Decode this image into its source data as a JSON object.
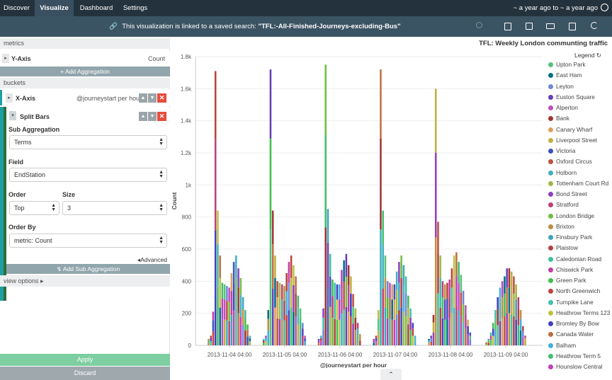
{
  "nav": {
    "tabs": [
      "Discover",
      "Visualize",
      "Dashboard",
      "Settings"
    ],
    "active_tab": "Visualize",
    "time_range": "~ a year ago to ~ a year ago"
  },
  "subbar": {
    "message_prefix": "This visualization is linked to a saved search:",
    "saved_search": "\"TFL:-All-Finished-Journeys-excluding-Bus\""
  },
  "left": {
    "metrics_header": "metrics",
    "y_axis_label": "Y-Axis",
    "y_axis_value": "Count",
    "add_aggregation": "+ Add Aggregation",
    "buckets_header": "buckets",
    "x_axis_label": "X-Axis",
    "x_axis_value": "@journeystart per hour",
    "split_bars_label": "Split Bars",
    "sub_aggregation_label": "Sub Aggregation",
    "sub_aggregation_value": "Terms",
    "field_label": "Field",
    "field_value": "EndStation",
    "order_label": "Order",
    "order_value": "Top",
    "size_label": "Size",
    "size_value": "3",
    "order_by_label": "Order By",
    "order_by_value": "metric: Count",
    "advanced_link": "Advanced",
    "add_sub_aggregation": "Add Sub Aggregation",
    "view_options": "view options",
    "apply": "Apply",
    "discard": "Discard"
  },
  "chart_data": {
    "type": "bar",
    "title": "TFL: Weekly London communting traffic",
    "xlabel": "@journeystart per hour",
    "ylabel": "Count",
    "ylim": [
      0,
      1800
    ],
    "y_ticks": [
      0,
      200,
      400,
      600,
      800,
      1000,
      1200,
      1400,
      1600,
      1800
    ],
    "y_tick_labels": [
      "0",
      "200",
      "400",
      "600",
      "800",
      "1k",
      "1.2k",
      "1.4k",
      "1.6k",
      "1.8k"
    ],
    "x_tick_labels": [
      "2013-11-04 04:00",
      "2013-11-05 04:00",
      "2013-11-06 04:00",
      "2013-11-07 04:00",
      "2013-11-08 04:00",
      "2013-11-09 04:00"
    ],
    "legend_title": "Legend",
    "legend_placement": "right",
    "grid": true,
    "series": [
      {
        "name": "Upton Park",
        "color": "#57c17b"
      },
      {
        "name": "East Ham",
        "color": "#006e8a"
      },
      {
        "name": "Leyton",
        "color": "#6f87d8"
      },
      {
        "name": "Euston Square",
        "color": "#663db8"
      },
      {
        "name": "Alperton",
        "color": "#bc52bc"
      },
      {
        "name": "Bank",
        "color": "#9e3533"
      },
      {
        "name": "Canary Wharf",
        "color": "#daa05d"
      },
      {
        "name": "Liverpool Street",
        "color": "#bfaf40"
      },
      {
        "name": "Victoria",
        "color": "#4050bf"
      },
      {
        "name": "Oxford Circus",
        "color": "#bf5040"
      },
      {
        "name": "Holborn",
        "color": "#40afbf"
      },
      {
        "name": "Tottenham Court Rd",
        "color": "#a0b846"
      },
      {
        "name": "Bond Street",
        "color": "#8e40bf"
      },
      {
        "name": "Stratford",
        "color": "#bf4073"
      },
      {
        "name": "London Bridge",
        "color": "#6fbf40"
      },
      {
        "name": "Brixton",
        "color": "#bf8e40"
      },
      {
        "name": "Finsbury Park",
        "color": "#40a2bf"
      },
      {
        "name": "Plaistow",
        "color": "#b74040"
      },
      {
        "name": "Caledonian Road",
        "color": "#40bf9e"
      },
      {
        "name": "Chiswick Park",
        "color": "#bf40a2"
      },
      {
        "name": "Green Park",
        "color": "#40bf4e"
      },
      {
        "name": "North Greenwich",
        "color": "#bf4040"
      },
      {
        "name": "Turnpike Lane",
        "color": "#40bfaf"
      },
      {
        "name": "Heathrow Terms 123",
        "color": "#bfbf40"
      },
      {
        "name": "Bromley By Bow",
        "color": "#4040bf"
      },
      {
        "name": "Canada Water",
        "color": "#bf6f40"
      },
      {
        "name": "Balham",
        "color": "#40afdf"
      },
      {
        "name": "Heathrow Term 5",
        "color": "#40bf6f"
      },
      {
        "name": "Hounslow Central",
        "color": "#bf40bf"
      }
    ],
    "daily_totals": [
      [
        0,
        0,
        0,
        0,
        0,
        40,
        60,
        210,
        1710,
        840,
        560,
        390,
        380,
        370,
        360,
        450,
        520,
        560,
        480,
        420,
        300,
        220,
        130,
        60
      ],
      [
        0,
        0,
        0,
        0,
        0,
        40,
        60,
        220,
        1720,
        840,
        560,
        400,
        390,
        380,
        370,
        450,
        520,
        560,
        500,
        430,
        310,
        230,
        140,
        60
      ],
      [
        0,
        0,
        0,
        0,
        0,
        40,
        60,
        230,
        1750,
        850,
        570,
        410,
        390,
        380,
        380,
        470,
        530,
        570,
        500,
        430,
        320,
        230,
        140,
        70
      ],
      [
        0,
        0,
        0,
        0,
        0,
        40,
        60,
        220,
        1720,
        840,
        560,
        400,
        390,
        380,
        380,
        460,
        520,
        560,
        500,
        430,
        310,
        230,
        140,
        60
      ],
      [
        0,
        0,
        0,
        0,
        0,
        40,
        60,
        190,
        1600,
        770,
        560,
        400,
        380,
        390,
        410,
        480,
        560,
        580,
        520,
        440,
        340,
        250,
        160,
        80
      ],
      [
        0,
        0,
        0,
        0,
        0,
        0,
        20,
        40,
        80,
        140,
        220,
        300,
        360,
        400,
        430,
        480,
        480,
        460,
        430,
        380,
        300,
        220,
        120,
        60
      ]
    ]
  }
}
